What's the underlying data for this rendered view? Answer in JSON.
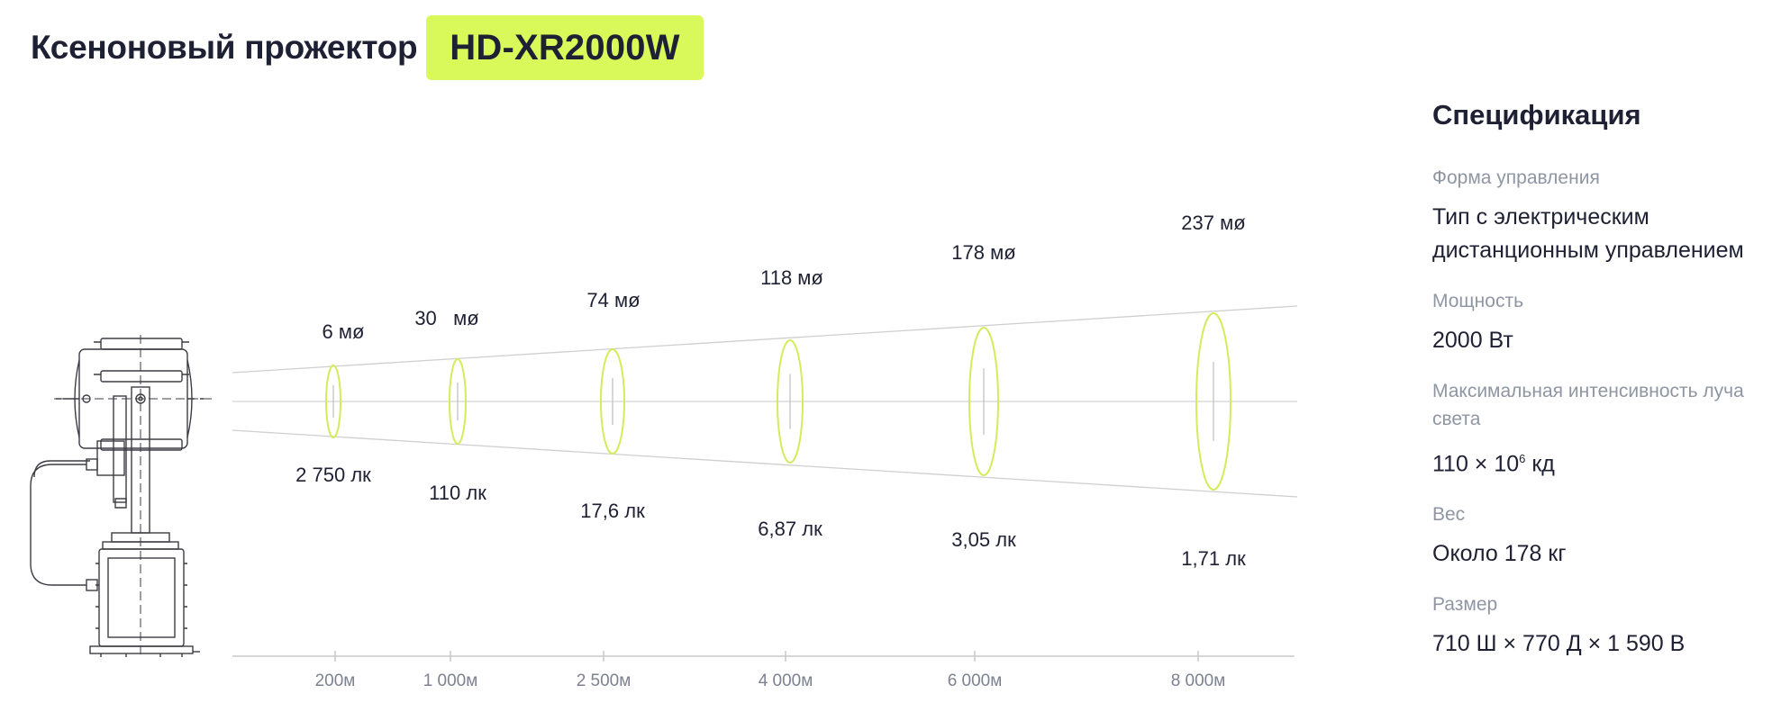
{
  "header": {
    "title": "Ксеноновый прожектор",
    "model": "HD-XR2000W"
  },
  "diagram": {
    "distance_ticks": [
      "200м",
      "1 000м",
      "2 500м",
      "4 000м",
      "6 000м",
      "8 000м"
    ],
    "beam_diameters": [
      "6 мø",
      "30   мø",
      "74 мø",
      "118 мø",
      "178 мø",
      "237 мø"
    ],
    "illuminance": [
      "2 750 лк",
      "110 лк",
      "17,6 лк",
      "6,87 лк",
      "3,05 лк",
      "1,71 лк"
    ],
    "colors": {
      "ellipse": "#d3ec5b",
      "beam_line": "#cfcfcf",
      "axis": "#c8c8c8",
      "drawing": "#3c3c44"
    }
  },
  "spec": {
    "title": "Спецификация",
    "items": [
      {
        "label": "Форма управления",
        "value": "Тип с электрическим дистанционным управлением"
      },
      {
        "label": "Мощность",
        "value": "2000 Вт"
      },
      {
        "label": "Максимальная интенсивность луча света",
        "value": "110 × 10",
        "sup": "6",
        "suffix": " кд"
      },
      {
        "label": "Вес",
        "value": "Около 178 кг"
      },
      {
        "label": "Размер",
        "value": "710 Ш × 770 Д × 1 590 В"
      }
    ]
  }
}
